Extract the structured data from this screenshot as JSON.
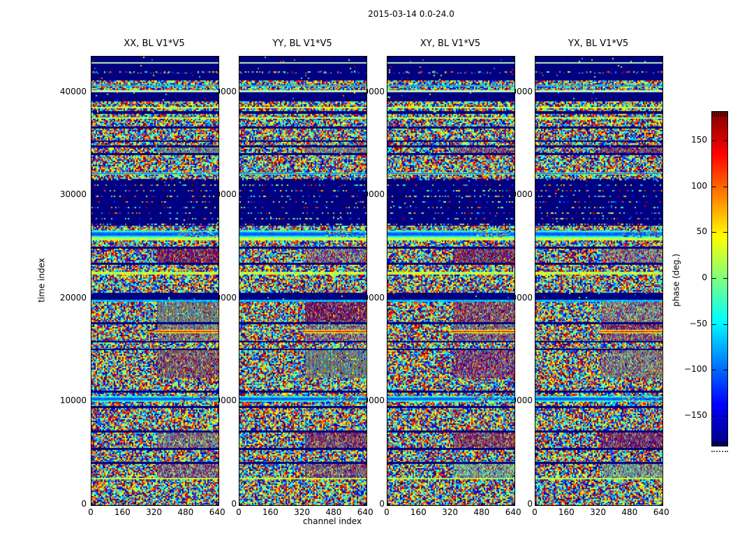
{
  "figure": {
    "background": "#ffffff"
  },
  "chart_data": {
    "type": "heatmap",
    "title": "2015-03-14 0.0-24.0",
    "panels": [
      "XX, BL V1*V5",
      "YY, BL V1*V5",
      "XY, BL V1*V5",
      "YX, BL V1*V5"
    ],
    "xlabel": "channel index",
    "ylabel": "time index",
    "x_ticks": [
      0,
      160,
      320,
      480,
      640
    ],
    "y_ticks": [
      0,
      10000,
      20000,
      30000,
      40000
    ],
    "xlim": [
      0,
      643
    ],
    "ylim": [
      0,
      43500
    ],
    "colormap": "jet",
    "flag_color": "#000080",
    "colorbar": {
      "label": "phase (deg.)",
      "ticks": [
        150,
        100,
        50,
        0,
        -50,
        -100,
        -150
      ],
      "vmin": -182,
      "vmax": 182
    },
    "time_bands": [
      {
        "t0": 42960,
        "t1": 43500,
        "kind": "flagged"
      },
      {
        "t0": 42820,
        "t1": 42960,
        "kind": "pale_line"
      },
      {
        "t0": 42080,
        "t1": 42820,
        "kind": "flagged"
      },
      {
        "t0": 41870,
        "t1": 42080,
        "kind": "sparse_row"
      },
      {
        "t0": 41200,
        "t1": 41870,
        "kind": "flagged"
      },
      {
        "t0": 40720,
        "t1": 41200,
        "kind": "noise"
      },
      {
        "t0": 40590,
        "t1": 40720,
        "kind": "cyan_line"
      },
      {
        "t0": 40250,
        "t1": 40590,
        "kind": "noise"
      },
      {
        "t0": 40040,
        "t1": 40250,
        "kind": "pale_line"
      },
      {
        "t0": 39160,
        "t1": 40040,
        "kind": "flagged"
      },
      {
        "t0": 38620,
        "t1": 39160,
        "kind": "noise"
      },
      {
        "t0": 38490,
        "t1": 38620,
        "kind": "green_line"
      },
      {
        "t0": 38220,
        "t1": 38490,
        "kind": "noise"
      },
      {
        "t0": 37940,
        "t1": 38220,
        "kind": "flagged"
      },
      {
        "t0": 37610,
        "t1": 37940,
        "kind": "noise"
      },
      {
        "t0": 37470,
        "t1": 37610,
        "kind": "green_line"
      },
      {
        "t0": 36720,
        "t1": 37470,
        "kind": "noise"
      },
      {
        "t0": 36520,
        "t1": 36720,
        "kind": "flagged"
      },
      {
        "t0": 35370,
        "t1": 36520,
        "kind": "noise"
      },
      {
        "t0": 35230,
        "t1": 35370,
        "kind": "flagged"
      },
      {
        "t0": 34900,
        "t1": 35230,
        "kind": "noise"
      },
      {
        "t0": 34690,
        "t1": 34900,
        "kind": "flagged"
      },
      {
        "t0": 34150,
        "t1": 34690,
        "kind": "noise_striped"
      },
      {
        "t0": 33950,
        "t1": 34150,
        "kind": "flagged"
      },
      {
        "t0": 32250,
        "t1": 33950,
        "kind": "noise"
      },
      {
        "t0": 32050,
        "t1": 32250,
        "kind": "smooth_cyan"
      },
      {
        "t0": 31640,
        "t1": 32050,
        "kind": "noise"
      },
      {
        "t0": 27100,
        "t1": 31640,
        "kind": "sparse_block"
      },
      {
        "t0": 26630,
        "t1": 27100,
        "kind": "noise"
      },
      {
        "t0": 25950,
        "t1": 26630,
        "kind": "smooth_cyan"
      },
      {
        "t0": 25680,
        "t1": 25950,
        "kind": "green_line"
      },
      {
        "t0": 25070,
        "t1": 25680,
        "kind": "noise"
      },
      {
        "t0": 24870,
        "t1": 25070,
        "kind": "flagged"
      },
      {
        "t0": 23510,
        "t1": 24870,
        "kind": "noise_striped"
      },
      {
        "t0": 23310,
        "t1": 23510,
        "kind": "flagged"
      },
      {
        "t0": 22630,
        "t1": 23310,
        "kind": "noise"
      },
      {
        "t0": 22360,
        "t1": 22630,
        "kind": "green_band"
      },
      {
        "t0": 20600,
        "t1": 22360,
        "kind": "noise"
      },
      {
        "t0": 19920,
        "t1": 20600,
        "kind": "flagged"
      },
      {
        "t0": 19720,
        "t1": 19920,
        "kind": "cyan_line"
      },
      {
        "t0": 17750,
        "t1": 19720,
        "kind": "noise_striped"
      },
      {
        "t0": 17550,
        "t1": 17750,
        "kind": "flagged"
      },
      {
        "t0": 17000,
        "t1": 17550,
        "kind": "noise_striped"
      },
      {
        "t0": 16700,
        "t1": 17000,
        "kind": "warm_streak"
      },
      {
        "t0": 15920,
        "t1": 16700,
        "kind": "noise_striped"
      },
      {
        "t0": 15790,
        "t1": 15920,
        "kind": "flagged"
      },
      {
        "t0": 15180,
        "t1": 15790,
        "kind": "noise"
      },
      {
        "t0": 15040,
        "t1": 15180,
        "kind": "flagged"
      },
      {
        "t0": 12330,
        "t1": 15040,
        "kind": "noise_striped"
      },
      {
        "t0": 11110,
        "t1": 12330,
        "kind": "noise"
      },
      {
        "t0": 10910,
        "t1": 11110,
        "kind": "flagged"
      },
      {
        "t0": 10570,
        "t1": 10910,
        "kind": "noise"
      },
      {
        "t0": 10030,
        "t1": 10570,
        "kind": "smooth_cyan"
      },
      {
        "t0": 9620,
        "t1": 10030,
        "kind": "noise"
      },
      {
        "t0": 9420,
        "t1": 9620,
        "kind": "flagged"
      },
      {
        "t0": 7250,
        "t1": 9420,
        "kind": "noise"
      },
      {
        "t0": 7050,
        "t1": 7250,
        "kind": "flagged"
      },
      {
        "t0": 5560,
        "t1": 7050,
        "kind": "noise_striped"
      },
      {
        "t0": 5350,
        "t1": 5560,
        "kind": "flagged"
      },
      {
        "t0": 4200,
        "t1": 5350,
        "kind": "noise"
      },
      {
        "t0": 4000,
        "t1": 4200,
        "kind": "flagged"
      },
      {
        "t0": 2640,
        "t1": 4000,
        "kind": "noise_striped"
      },
      {
        "t0": 2510,
        "t1": 2640,
        "kind": "green_line"
      },
      {
        "t0": 0,
        "t1": 2510,
        "kind": "noise"
      }
    ]
  }
}
